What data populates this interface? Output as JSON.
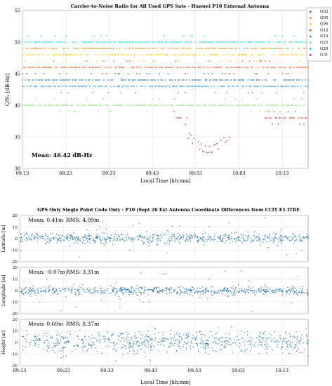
{
  "chart_data": [
    {
      "type": "scatter",
      "title": "Carrier-to-Noise Ratio for All Used GPS Sats - Huawei P10 External Antenna",
      "xlabel": "Local Time [hh:mm]",
      "ylabel": "C/N₀ [dB-Hz]",
      "ylim": [
        30,
        55
      ],
      "yticks": [
        "30",
        "35",
        "40",
        "45",
        "50",
        "55"
      ],
      "xticks": [
        "09:13",
        "09:23",
        "09:33",
        "09:43",
        "09:53",
        "10:03",
        "10:13"
      ],
      "xlim_minutes": [
        0,
        66
      ],
      "annotation": "Mean: 46.42 dB-Hz",
      "legend_position": "top-right",
      "grid": true,
      "series": [
        {
          "name": "G02",
          "color": "#1f77b4",
          "approx_level": 44,
          "from_min": 0,
          "to_min": 66
        },
        {
          "name": "G05",
          "color": "#ff7f0e",
          "approx_level": 49,
          "from_min": 0,
          "to_min": 66
        },
        {
          "name": "G06",
          "color": "#ffcc00",
          "approx_level": 48,
          "from_min": 0,
          "to_min": 66
        },
        {
          "name": "G12",
          "color": "#ff4500",
          "approx_level": 46,
          "from_min": 0,
          "to_min": 66
        },
        {
          "name": "G19",
          "color": "#1e90ff",
          "approx_level": 43,
          "from_min": 0,
          "to_min": 66
        },
        {
          "name": "G25",
          "color": "#7ee06a",
          "approx_level": 40,
          "from_min": 0,
          "to_min": 66
        },
        {
          "name": "G29",
          "color": "#00e5ee",
          "approx_level": 50,
          "from_min": 0,
          "to_min": 66
        },
        {
          "name": "G31",
          "color": "#d62728",
          "approx_level": 38,
          "from_min": 35,
          "to_min": 66
        }
      ]
    },
    {
      "type": "scatter",
      "title": "GPS Only Single Point Code Only - P10 (Sept 26 Ext Antenna Coordinate Differences from CCIT E1 ITRF",
      "xlabel": "Local Time [hh:mm]",
      "xticks": [
        "09:13",
        "09:23",
        "09:33",
        "09:43",
        "09:53",
        "10:03",
        "10:13"
      ],
      "color": "#1f77b4",
      "panels": [
        {
          "ylabel": "Latitude [m]",
          "ylim": [
            -20,
            20
          ],
          "yticks": [
            "-20",
            "-10",
            "0",
            "10",
            "20"
          ],
          "mean_label": "Mean: 0.41m",
          "rms_label": "RMS: 4.09m",
          "mean": 0.41,
          "rms": 4.09
        },
        {
          "ylabel": "Longitude [m]",
          "ylim": [
            -20,
            20
          ],
          "yticks": [
            "-20",
            "-10",
            "0",
            "10",
            "20"
          ],
          "mean_label": "Mean: -0.07m",
          "rms_label": "RMS: 3.31m",
          "mean": -0.07,
          "rms": 3.31
        },
        {
          "ylabel": "Height [m]",
          "ylim": [
            -20,
            20
          ],
          "yticks": [
            "-20",
            "-10",
            "0",
            "10",
            "20"
          ],
          "mean_label": "Mean: 0.69m",
          "rms_label": "RMS: 8.37m",
          "mean": 0.69,
          "rms": 8.37
        }
      ]
    }
  ]
}
